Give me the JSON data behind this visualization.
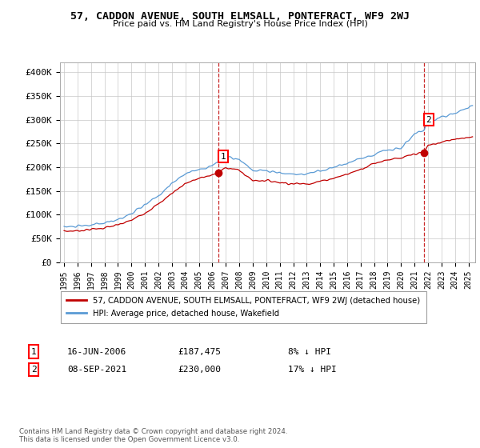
{
  "title": "57, CADDON AVENUE, SOUTH ELMSALL, PONTEFRACT, WF9 2WJ",
  "subtitle": "Price paid vs. HM Land Registry's House Price Index (HPI)",
  "ylabel_ticks": [
    "£0",
    "£50K",
    "£100K",
    "£150K",
    "£200K",
    "£250K",
    "£300K",
    "£350K",
    "£400K"
  ],
  "ylim": [
    0,
    420000
  ],
  "xlim_start": 1994.7,
  "xlim_end": 2025.5,
  "legend_line1": "57, CADDON AVENUE, SOUTH ELMSALL, PONTEFRACT, WF9 2WJ (detached house)",
  "legend_line2": "HPI: Average price, detached house, Wakefield",
  "annotation1_date": "16-JUN-2006",
  "annotation1_price": "£187,475",
  "annotation1_hpi": "8% ↓ HPI",
  "annotation2_date": "08-SEP-2021",
  "annotation2_price": "£230,000",
  "annotation2_hpi": "17% ↓ HPI",
  "footnote": "Contains HM Land Registry data © Crown copyright and database right 2024.\nThis data is licensed under the Open Government Licence v3.0.",
  "sale1_x": 2006.46,
  "sale1_y": 187475,
  "sale2_x": 2021.69,
  "sale2_y": 230000,
  "hpi_color": "#5b9bd5",
  "price_color": "#c00000",
  "vline_color": "#c00000",
  "grid_color": "#c8c8c8",
  "background_color": "#ffffff",
  "chart_bg": "#eef4fb"
}
